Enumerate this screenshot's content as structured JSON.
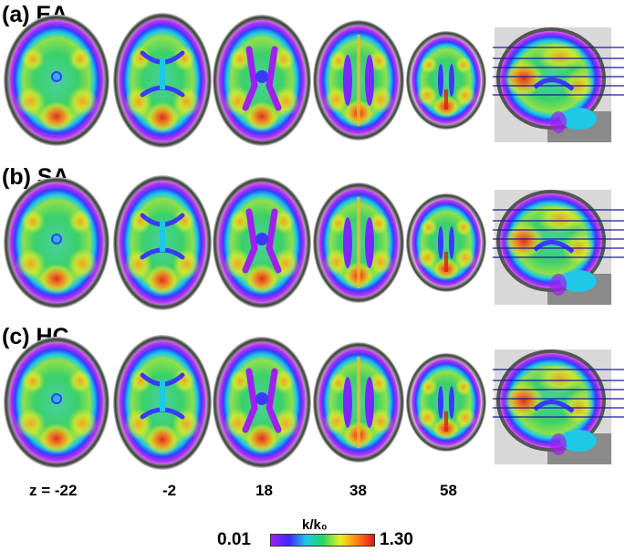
{
  "rows": [
    {
      "id": "ea",
      "label": "(a)  EA"
    },
    {
      "id": "sa",
      "label": "(b)  SA"
    },
    {
      "id": "hc",
      "label": "(c)  HC"
    }
  ],
  "z_labels": [
    "z = -22",
    "-2",
    "18",
    "38",
    "58"
  ],
  "colorbar": {
    "min": "0.01",
    "max": "1.30",
    "unit": "k/k₀",
    "colors": [
      "#a020f0",
      "#3b2bff",
      "#1ec8e6",
      "#22d468",
      "#e8f020",
      "#ff8a1a",
      "#e31a1a"
    ]
  }
}
